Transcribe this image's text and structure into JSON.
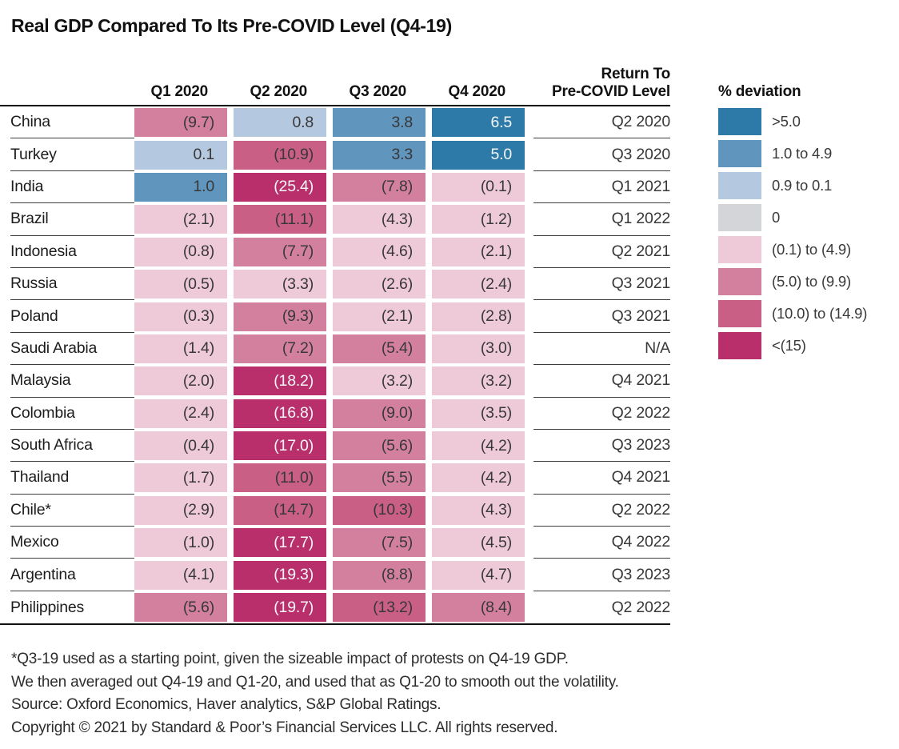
{
  "title": "Real GDP Compared To Its Pre-COVID Level (Q4-19)",
  "table": {
    "col_headers": [
      "Q1 2020",
      "Q2 2020",
      "Q3 2020",
      "Q4 2020"
    ],
    "return_header_line1": "Return To",
    "return_header_line2": "Pre-COVID Level"
  },
  "legend": {
    "title": "% deviation",
    "items": [
      {
        "label": ">5.0",
        "level": "blue1"
      },
      {
        "label": "1.0 to 4.9",
        "level": "blue2"
      },
      {
        "label": "0.9 to 0.1",
        "level": "blue3"
      },
      {
        "label": "0",
        "level": "gray"
      },
      {
        "label": "(0.1) to (4.9)",
        "level": "pink1"
      },
      {
        "label": "(5.0) to (9.9)",
        "level": "pink2"
      },
      {
        "label": "(10.0) to (14.9)",
        "level": "pink3"
      },
      {
        "label": "<(15)",
        "level": "pink4"
      }
    ]
  },
  "chart_data": {
    "type": "heatmap",
    "title": "Real GDP Compared To Its Pre-COVID Level (Q4-19)",
    "unit": "% deviation",
    "columns": [
      "Q1 2020",
      "Q2 2020",
      "Q3 2020",
      "Q4 2020"
    ],
    "extra_column": "Return To Pre-COVID Level",
    "colors": {
      "blue1": "#2d7aa8",
      "blue2": "#6095bd",
      "blue3": "#b4c9e0",
      "gray": "#d4d5d8",
      "pink1": "#eec9d7",
      "pink2": "#d2809e",
      "pink3": "#c95f84",
      "pink4": "#b82f6b"
    },
    "white_text_levels": [
      "blue1",
      "pink4"
    ],
    "rows": [
      {
        "country": "China",
        "values": [
          "(9.7)",
          "0.8",
          "3.8",
          "6.5"
        ],
        "numeric": [
          -9.7,
          0.8,
          3.8,
          6.5
        ],
        "levels": [
          "pink2",
          "blue3",
          "blue2",
          "blue1"
        ],
        "return": "Q2 2020"
      },
      {
        "country": "Turkey",
        "values": [
          "0.1",
          "(10.9)",
          "3.3",
          "5.0"
        ],
        "numeric": [
          0.1,
          -10.9,
          3.3,
          5.0
        ],
        "levels": [
          "blue3",
          "pink3",
          "blue2",
          "blue1"
        ],
        "return": "Q3 2020"
      },
      {
        "country": "India",
        "values": [
          "1.0",
          "(25.4)",
          "(7.8)",
          "(0.1)"
        ],
        "numeric": [
          1.0,
          -25.4,
          -7.8,
          -0.1
        ],
        "levels": [
          "blue2",
          "pink4",
          "pink2",
          "pink1"
        ],
        "return": "Q1 2021"
      },
      {
        "country": "Brazil",
        "values": [
          "(2.1)",
          "(11.1)",
          "(4.3)",
          "(1.2)"
        ],
        "numeric": [
          -2.1,
          -11.1,
          -4.3,
          -1.2
        ],
        "levels": [
          "pink1",
          "pink3",
          "pink1",
          "pink1"
        ],
        "return": "Q1 2022"
      },
      {
        "country": "Indonesia",
        "values": [
          "(0.8)",
          "(7.7)",
          "(4.6)",
          "(2.1)"
        ],
        "numeric": [
          -0.8,
          -7.7,
          -4.6,
          -2.1
        ],
        "levels": [
          "pink1",
          "pink2",
          "pink1",
          "pink1"
        ],
        "return": "Q2 2021"
      },
      {
        "country": "Russia",
        "values": [
          "(0.5)",
          "(3.3)",
          "(2.6)",
          "(2.4)"
        ],
        "numeric": [
          -0.5,
          -3.3,
          -2.6,
          -2.4
        ],
        "levels": [
          "pink1",
          "pink1",
          "pink1",
          "pink1"
        ],
        "return": "Q3 2021"
      },
      {
        "country": "Poland",
        "values": [
          "(0.3)",
          "(9.3)",
          "(2.1)",
          "(2.8)"
        ],
        "numeric": [
          -0.3,
          -9.3,
          -2.1,
          -2.8
        ],
        "levels": [
          "pink1",
          "pink2",
          "pink1",
          "pink1"
        ],
        "return": "Q3 2021"
      },
      {
        "country": "Saudi Arabia",
        "values": [
          "(1.4)",
          "(7.2)",
          "(5.4)",
          "(3.0)"
        ],
        "numeric": [
          -1.4,
          -7.2,
          -5.4,
          -3.0
        ],
        "levels": [
          "pink1",
          "pink2",
          "pink2",
          "pink1"
        ],
        "return": "N/A"
      },
      {
        "country": "Malaysia",
        "values": [
          "(2.0)",
          "(18.2)",
          "(3.2)",
          "(3.2)"
        ],
        "numeric": [
          -2.0,
          -18.2,
          -3.2,
          -3.2
        ],
        "levels": [
          "pink1",
          "pink4",
          "pink1",
          "pink1"
        ],
        "return": "Q4 2021"
      },
      {
        "country": "Colombia",
        "values": [
          "(2.4)",
          "(16.8)",
          "(9.0)",
          "(3.5)"
        ],
        "numeric": [
          -2.4,
          -16.8,
          -9.0,
          -3.5
        ],
        "levels": [
          "pink1",
          "pink4",
          "pink2",
          "pink1"
        ],
        "return": "Q2 2022"
      },
      {
        "country": "South Africa",
        "values": [
          "(0.4)",
          "(17.0)",
          "(5.6)",
          "(4.2)"
        ],
        "numeric": [
          -0.4,
          -17.0,
          -5.6,
          -4.2
        ],
        "levels": [
          "pink1",
          "pink4",
          "pink2",
          "pink1"
        ],
        "return": "Q3 2023"
      },
      {
        "country": "Thailand",
        "values": [
          "(1.7)",
          "(11.0)",
          "(5.5)",
          "(4.2)"
        ],
        "numeric": [
          -1.7,
          -11.0,
          -5.5,
          -4.2
        ],
        "levels": [
          "pink1",
          "pink3",
          "pink2",
          "pink1"
        ],
        "return": "Q4 2021"
      },
      {
        "country": "Chile*",
        "values": [
          "(2.9)",
          "(14.7)",
          "(10.3)",
          "(4.3)"
        ],
        "numeric": [
          -2.9,
          -14.7,
          -10.3,
          -4.3
        ],
        "levels": [
          "pink1",
          "pink3",
          "pink3",
          "pink1"
        ],
        "return": "Q2 2022"
      },
      {
        "country": "Mexico",
        "values": [
          "(1.0)",
          "(17.7)",
          "(7.5)",
          "(4.5)"
        ],
        "numeric": [
          -1.0,
          -17.7,
          -7.5,
          -4.5
        ],
        "levels": [
          "pink1",
          "pink4",
          "pink2",
          "pink1"
        ],
        "return": "Q4 2022"
      },
      {
        "country": "Argentina",
        "values": [
          "(4.1)",
          "(19.3)",
          "(8.8)",
          "(4.7)"
        ],
        "numeric": [
          -4.1,
          -19.3,
          -8.8,
          -4.7
        ],
        "levels": [
          "pink1",
          "pink4",
          "pink2",
          "pink1"
        ],
        "return": "Q3 2023"
      },
      {
        "country": "Philippines",
        "values": [
          "(5.6)",
          "(19.7)",
          "(13.2)",
          "(8.4)"
        ],
        "numeric": [
          -5.6,
          -19.7,
          -13.2,
          -8.4
        ],
        "levels": [
          "pink2",
          "pink4",
          "pink3",
          "pink2"
        ],
        "return": "Q2 2022"
      }
    ]
  },
  "footnotes": [
    "*Q3-19 used as a starting point, given the sizeable impact of protests on Q4-19 GDP.",
    "We then averaged out Q4-19 and Q1-20, and used that as Q1-20 to smooth out the volatility.",
    "Source: Oxford Economics, Haver analytics, S&P Global Ratings.",
    "Copyright © 2021 by Standard & Poor’s Financial Services LLC. All rights reserved."
  ]
}
